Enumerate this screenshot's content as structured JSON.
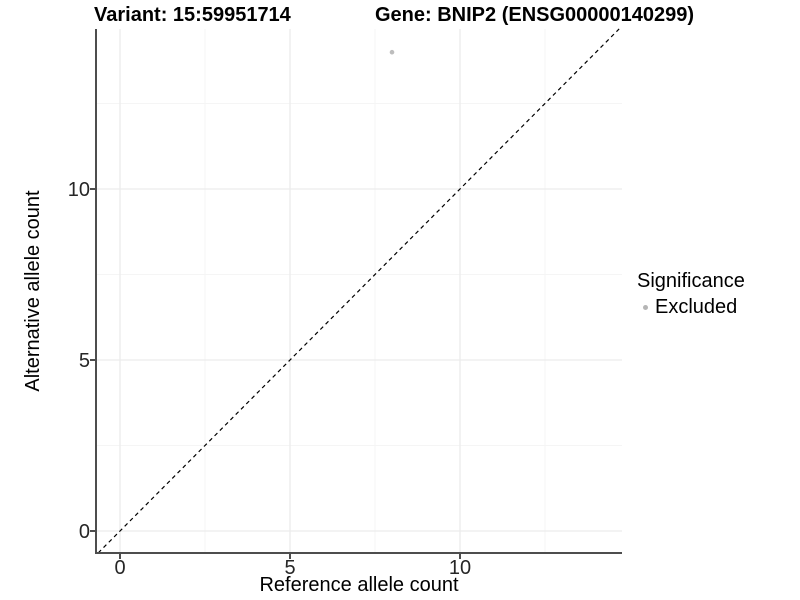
{
  "titles": {
    "left": "Variant: 15:59951714",
    "right": "Gene: BNIP2 (ENSG00000140299)"
  },
  "chart_data": {
    "type": "scatter",
    "xlabel": "Reference allele count",
    "ylabel": "Alternative allele count",
    "xlim": [
      -0.71,
      14.76
    ],
    "ylim": [
      -0.64,
      14.68
    ],
    "xticks": [
      0,
      5,
      10
    ],
    "yticks": [
      0,
      5,
      10
    ],
    "xminor": [
      2.5,
      7.5,
      12.5
    ],
    "yminor": [
      2.5,
      7.5,
      12.5
    ],
    "grid": true,
    "series": [
      {
        "name": "Excluded",
        "color": "#bdbdbd",
        "points": [
          [
            8,
            14
          ]
        ]
      }
    ],
    "reference_line": {
      "type": "identity",
      "slope": 1,
      "intercept": 0,
      "style": "dashed",
      "color": "#000000"
    },
    "legend": {
      "title": "Significance",
      "position": "right",
      "items": [
        {
          "label": "Excluded",
          "color": "#b5b5b5"
        }
      ]
    }
  },
  "colors": {
    "background": "#ffffff",
    "axis_line": "#4d4d4d",
    "tick_text": "#262626",
    "grid_major": "#ececec",
    "grid_minor": "#f5f5f5",
    "point": "#bdbdbd"
  }
}
